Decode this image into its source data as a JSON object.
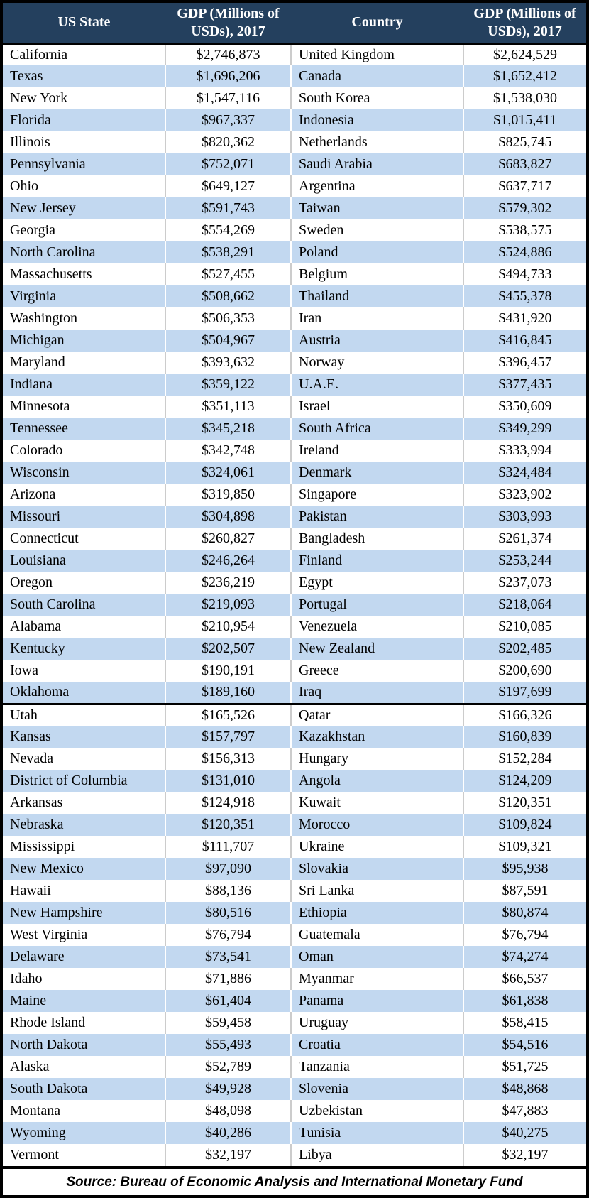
{
  "colors": {
    "header_bg": "#24405E",
    "header_text": "#FFFFFF",
    "row_bg": "#FFFFFF",
    "row_alt_bg": "#C2D8F0",
    "border": "#000000",
    "divider_on_white": "#CCCCCC",
    "divider_on_blue": "#FFFFFF"
  },
  "footer": {
    "source": "Source: Bureau of Economic Analysis and International Monetary Fund"
  },
  "chart_data": {
    "type": "table",
    "columns": [
      "US State",
      "GDP (Millions of USDs), 2017",
      "Country",
      "GDP (Millions of USDs), 2017"
    ],
    "section_break_after_row": 30,
    "striping": "alternating, row 1 white, row 2 light blue",
    "rows": [
      [
        "California",
        "$2,746,873",
        "United Kingdom",
        "$2,624,529"
      ],
      [
        "Texas",
        "$1,696,206",
        "Canada",
        "$1,652,412"
      ],
      [
        "New York",
        "$1,547,116",
        "South Korea",
        "$1,538,030"
      ],
      [
        "Florida",
        "$967,337",
        "Indonesia",
        "$1,015,411"
      ],
      [
        "Illinois",
        "$820,362",
        "Netherlands",
        "$825,745"
      ],
      [
        "Pennsylvania",
        "$752,071",
        "Saudi Arabia",
        "$683,827"
      ],
      [
        "Ohio",
        "$649,127",
        "Argentina",
        "$637,717"
      ],
      [
        "New Jersey",
        "$591,743",
        "Taiwan",
        "$579,302"
      ],
      [
        "Georgia",
        "$554,269",
        "Sweden",
        "$538,575"
      ],
      [
        "North Carolina",
        "$538,291",
        "Poland",
        "$524,886"
      ],
      [
        "Massachusetts",
        "$527,455",
        "Belgium",
        "$494,733"
      ],
      [
        "Virginia",
        "$508,662",
        "Thailand",
        "$455,378"
      ],
      [
        "Washington",
        "$506,353",
        "Iran",
        "$431,920"
      ],
      [
        "Michigan",
        "$504,967",
        "Austria",
        "$416,845"
      ],
      [
        "Maryland",
        "$393,632",
        "Norway",
        "$396,457"
      ],
      [
        "Indiana",
        "$359,122",
        "U.A.E.",
        "$377,435"
      ],
      [
        "Minnesota",
        "$351,113",
        "Israel",
        "$350,609"
      ],
      [
        "Tennessee",
        "$345,218",
        "South Africa",
        "$349,299"
      ],
      [
        "Colorado",
        "$342,748",
        "Ireland",
        "$333,994"
      ],
      [
        "Wisconsin",
        "$324,061",
        "Denmark",
        "$324,484"
      ],
      [
        "Arizona",
        "$319,850",
        "Singapore",
        "$323,902"
      ],
      [
        "Missouri",
        "$304,898",
        "Pakistan",
        "$303,993"
      ],
      [
        "Connecticut",
        "$260,827",
        "Bangladesh",
        "$261,374"
      ],
      [
        "Louisiana",
        "$246,264",
        "Finland",
        "$253,244"
      ],
      [
        "Oregon",
        "$236,219",
        "Egypt",
        "$237,073"
      ],
      [
        "South Carolina",
        "$219,093",
        "Portugal",
        "$218,064"
      ],
      [
        "Alabama",
        "$210,954",
        "Venezuela",
        "$210,085"
      ],
      [
        "Kentucky",
        "$202,507",
        "New Zealand",
        "$202,485"
      ],
      [
        "Iowa",
        "$190,191",
        "Greece",
        "$200,690"
      ],
      [
        "Oklahoma",
        "$189,160",
        "Iraq",
        "$197,699"
      ],
      [
        "Utah",
        "$165,526",
        "Qatar",
        "$166,326"
      ],
      [
        "Kansas",
        "$157,797",
        "Kazakhstan",
        "$160,839"
      ],
      [
        "Nevada",
        "$156,313",
        "Hungary",
        "$152,284"
      ],
      [
        "District of Columbia",
        "$131,010",
        "Angola",
        "$124,209"
      ],
      [
        "Arkansas",
        "$124,918",
        "Kuwait",
        "$120,351"
      ],
      [
        "Nebraska",
        "$120,351",
        "Morocco",
        "$109,824"
      ],
      [
        "Mississippi",
        "$111,707",
        "Ukraine",
        "$109,321"
      ],
      [
        "New Mexico",
        "$97,090",
        "Slovakia",
        "$95,938"
      ],
      [
        "Hawaii",
        "$88,136",
        "Sri Lanka",
        "$87,591"
      ],
      [
        "New Hampshire",
        "$80,516",
        "Ethiopia",
        "$80,874"
      ],
      [
        "West Virginia",
        "$76,794",
        "Guatemala",
        "$76,794"
      ],
      [
        "Delaware",
        "$73,541",
        "Oman",
        "$74,274"
      ],
      [
        "Idaho",
        "$71,886",
        "Myanmar",
        "$66,537"
      ],
      [
        "Maine",
        "$61,404",
        "Panama",
        "$61,838"
      ],
      [
        "Rhode Island",
        "$59,458",
        "Uruguay",
        "$58,415"
      ],
      [
        "North Dakota",
        "$55,493",
        "Croatia",
        "$54,516"
      ],
      [
        "Alaska",
        "$52,789",
        "Tanzania",
        "$51,725"
      ],
      [
        "South Dakota",
        "$49,928",
        "Slovenia",
        "$48,868"
      ],
      [
        "Montana",
        "$48,098",
        "Uzbekistan",
        "$47,883"
      ],
      [
        "Wyoming",
        "$40,286",
        "Tunisia",
        "$40,275"
      ],
      [
        "Vermont",
        "$32,197",
        "Libya",
        "$32,197"
      ]
    ]
  }
}
